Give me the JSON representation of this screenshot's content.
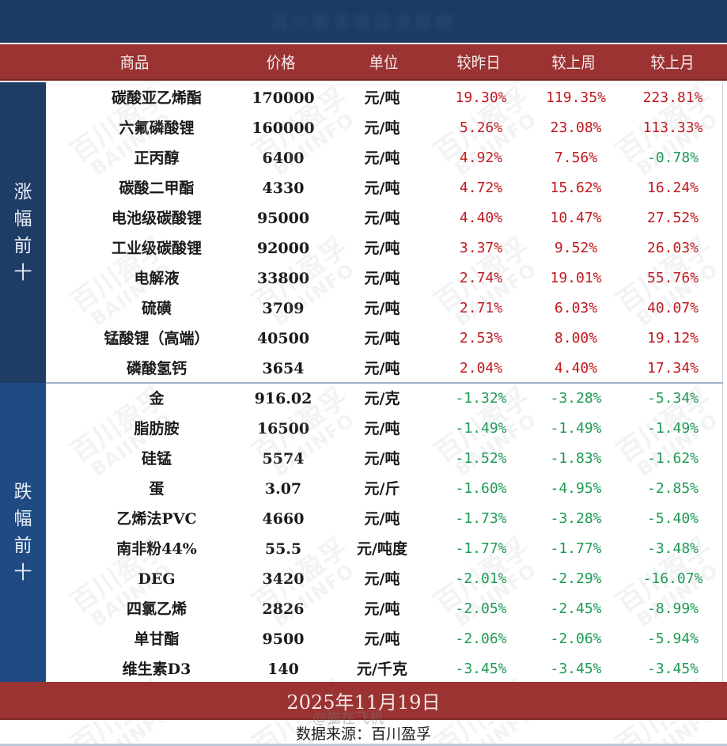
{
  "title": "百川盈孚商品涨跌榜",
  "header": {
    "columns": [
      "商品",
      "价格",
      "单位",
      "较昨日",
      "较上周",
      "较上月"
    ]
  },
  "sections": [
    {
      "label": "涨幅前十",
      "label_chars": [
        "涨",
        "幅",
        "前",
        "十"
      ],
      "rows": [
        {
          "name": "碳酸亚乙烯酯",
          "price": "170000",
          "unit": "元/吨",
          "day": "19.30%",
          "week": "119.35%",
          "month": "223.81%"
        },
        {
          "name": "六氟磷酸锂",
          "price": "160000",
          "unit": "元/吨",
          "day": "5.26%",
          "week": "23.08%",
          "month": "113.33%"
        },
        {
          "name": "正丙醇",
          "price": "6400",
          "unit": "元/吨",
          "day": "4.92%",
          "week": "7.56%",
          "month": "-0.78%"
        },
        {
          "name": "碳酸二甲酯",
          "price": "4330",
          "unit": "元/吨",
          "day": "4.72%",
          "week": "15.62%",
          "month": "16.24%"
        },
        {
          "name": "电池级碳酸锂",
          "price": "95000",
          "unit": "元/吨",
          "day": "4.40%",
          "week": "10.47%",
          "month": "27.52%"
        },
        {
          "name": "工业级碳酸锂",
          "price": "92000",
          "unit": "元/吨",
          "day": "3.37%",
          "week": "9.52%",
          "month": "26.03%"
        },
        {
          "name": "电解液",
          "price": "33800",
          "unit": "元/吨",
          "day": "2.74%",
          "week": "19.01%",
          "month": "55.76%"
        },
        {
          "name": "硫磺",
          "price": "3709",
          "unit": "元/吨",
          "day": "2.71%",
          "week": "6.03%",
          "month": "40.07%"
        },
        {
          "name": "锰酸锂（高端）",
          "price": "40500",
          "unit": "元/吨",
          "day": "2.53%",
          "week": "8.00%",
          "month": "19.12%"
        },
        {
          "name": "磷酸氢钙",
          "price": "3654",
          "unit": "元/吨",
          "day": "2.04%",
          "week": "4.40%",
          "month": "17.34%"
        }
      ]
    },
    {
      "label": "跌幅前十",
      "label_chars": [
        "跌",
        "幅",
        "前",
        "十"
      ],
      "rows": [
        {
          "name": "金",
          "price": "916.02",
          "unit": "元/克",
          "day": "-1.32%",
          "week": "-3.28%",
          "month": "-5.34%"
        },
        {
          "name": "脂肪胺",
          "price": "16500",
          "unit": "元/吨",
          "day": "-1.49%",
          "week": "-1.49%",
          "month": "-1.49%"
        },
        {
          "name": "硅锰",
          "price": "5574",
          "unit": "元/吨",
          "day": "-1.52%",
          "week": "-1.83%",
          "month": "-1.62%"
        },
        {
          "name": "蛋",
          "price": "3.07",
          "unit": "元/斤",
          "day": "-1.60%",
          "week": "-4.95%",
          "month": "-2.85%"
        },
        {
          "name": "乙烯法PVC",
          "price": "4660",
          "unit": "元/吨",
          "day": "-1.73%",
          "week": "-3.28%",
          "month": "-5.40%"
        },
        {
          "name": "南非粉44%",
          "price": "55.5",
          "unit": "元/吨度",
          "day": "-1.77%",
          "week": "-1.77%",
          "month": "-3.48%"
        },
        {
          "name": "DEG",
          "price": "3420",
          "unit": "元/吨",
          "day": "-2.01%",
          "week": "-2.29%",
          "month": "-16.07%"
        },
        {
          "name": "四氯乙烯",
          "price": "2826",
          "unit": "元/吨",
          "day": "-2.05%",
          "week": "-2.45%",
          "month": "-8.99%"
        },
        {
          "name": "单甘酯",
          "price": "9500",
          "unit": "元/吨",
          "day": "-2.06%",
          "week": "-2.06%",
          "month": "-5.94%"
        },
        {
          "name": "维生素D3",
          "price": "140",
          "unit": "元/千克",
          "day": "-3.45%",
          "week": "-3.45%",
          "month": "-3.45%"
        }
      ]
    }
  ],
  "footer": {
    "date": "2025年11月19日",
    "source": "数据来源：百川盈孚",
    "weibo_overlay": "@猫在飞机"
  },
  "watermark": {
    "cn": "百川盈孚",
    "en": "BAIINFO"
  },
  "colors": {
    "navy_title": "#1d3a62",
    "header_red": "#9b3333",
    "side_up": "#1f3c65",
    "side_down": "#1f4a82",
    "positive": "#c0191e",
    "negative": "#1e9a54"
  }
}
